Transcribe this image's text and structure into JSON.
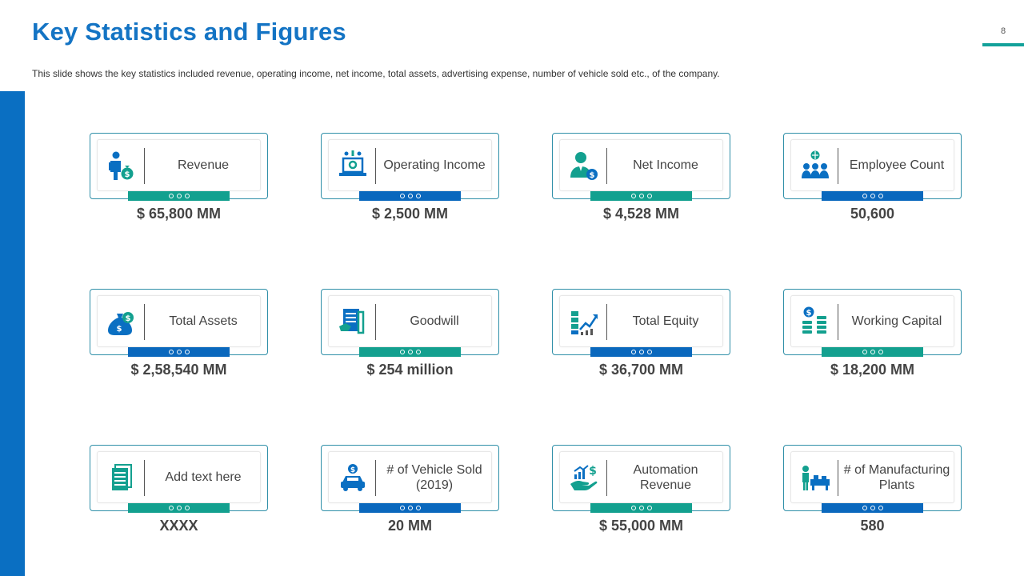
{
  "header": {
    "title": "Key Statistics and Figures",
    "page_number": "8",
    "subtitle": "This slide shows the key statistics included revenue,  operating  income, net income, total assets, advertising  expense, number of vehicle  sold etc., of the company."
  },
  "colors": {
    "blue": "#0a6fc2",
    "teal": "#13a08f",
    "title": "#1474c4"
  },
  "stats": [
    {
      "label": "Revenue",
      "value": "$ 65,800 MM",
      "icon": "person-money-bag-icon",
      "tab": "teal"
    },
    {
      "label": "Operating Income",
      "value": "$ 2,500 MM",
      "icon": "laptop-gear-icon",
      "tab": "blue"
    },
    {
      "label": "Net Income",
      "value": "$ 4,528 MM",
      "icon": "businessman-dollar-icon",
      "tab": "teal"
    },
    {
      "label": "Employee Count",
      "value": "50,600",
      "icon": "team-globe-icon",
      "tab": "blue"
    },
    {
      "label": "Total Assets",
      "value": "$ 2,58,540 MM",
      "icon": "money-bag-icon",
      "tab": "blue"
    },
    {
      "label": "Goodwill",
      "value": "$ 254 million",
      "icon": "document-handshake-icon",
      "tab": "teal"
    },
    {
      "label": "Total Equity",
      "value": "$ 36,700 MM",
      "icon": "growth-chart-icon",
      "tab": "blue"
    },
    {
      "label": "Working Capital",
      "value": "$ 18,200 MM",
      "icon": "coin-stack-icon",
      "tab": "teal"
    },
    {
      "label": "Add text here",
      "value": "XXXX",
      "icon": "document-list-icon",
      "tab": "teal"
    },
    {
      "label": "# of Vehicle Sold (2019)",
      "value": "20 MM",
      "icon": "car-dollar-icon",
      "tab": "blue"
    },
    {
      "label": "Automation Revenue",
      "value": "$ 55,000 MM",
      "icon": "hand-chart-dollar-icon",
      "tab": "teal"
    },
    {
      "label": "# of Manufacturing Plants",
      "value": "580",
      "icon": "factory-worker-icon",
      "tab": "blue"
    }
  ]
}
